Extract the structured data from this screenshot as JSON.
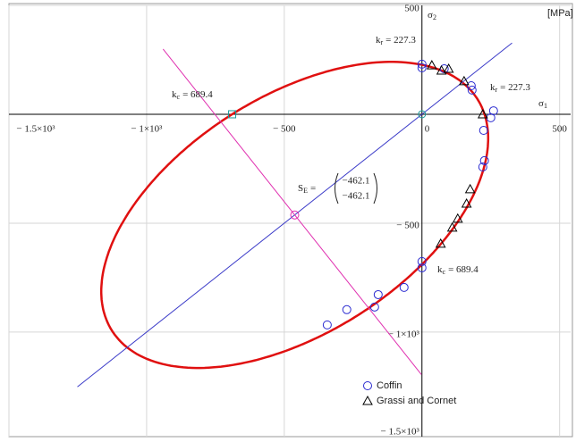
{
  "chart_data": {
    "type": "scatter",
    "xlim": [
      -1500,
      540
    ],
    "ylim": [
      -1480,
      500
    ],
    "xticks": [
      {
        "value": -1500,
        "label": "− 1.5×10³"
      },
      {
        "value": -1000,
        "label": "− 1×10³"
      },
      {
        "value": -500,
        "label": "− 500"
      },
      0,
      500
    ],
    "yticks": [
      {
        "value": -1500,
        "label": "− 1.5×10³"
      },
      {
        "value": -1000,
        "label": "− 1×10³"
      },
      {
        "value": -500,
        "label": "− 500"
      },
      500
    ],
    "grid": true,
    "x_label": {
      "symbol": "σ",
      "subscript": "1"
    },
    "y_label": {
      "symbol": "σ",
      "subscript": "2"
    },
    "units": "[MPa]",
    "k_r": {
      "symbol": "k",
      "subscript": "r",
      "label": "= 227.3",
      "value": 227.3
    },
    "k_c": {
      "symbol": "k",
      "subscript": "c",
      "label": "= 689.4",
      "value": 689.4
    },
    "S_E": {
      "symbol": "S",
      "subscript": "E",
      "equals": "=",
      "values": [
        -462.1,
        -462.1
      ],
      "value_labels": [
        "−462.1",
        "−462.1"
      ]
    },
    "ellipse_color": "#e01010",
    "series": [
      {
        "name": "Coffin",
        "color": "#2a2ad0",
        "marker": "circle",
        "x": [
          0,
          0,
          81,
          179,
          182,
          260,
          250,
          224,
          227,
          221,
          0,
          0,
          -65,
          -159,
          -172,
          -273,
          -344
        ],
        "values": [
          230,
          213,
          209,
          131,
          111,
          16,
          -16,
          -74,
          -213,
          -242,
          -676,
          -705,
          -795,
          -828,
          -885,
          -897,
          -967
        ]
      },
      {
        "name": "Grassi and Cornet",
        "color": "#000000",
        "marker": "triangle",
        "x": [
          36,
          71,
          97,
          153,
          221,
          175,
          162,
          130,
          110,
          68
        ],
        "values": [
          225,
          201,
          209,
          152,
          0,
          -344,
          -410,
          -479,
          -520,
          -594
        ]
      }
    ]
  }
}
